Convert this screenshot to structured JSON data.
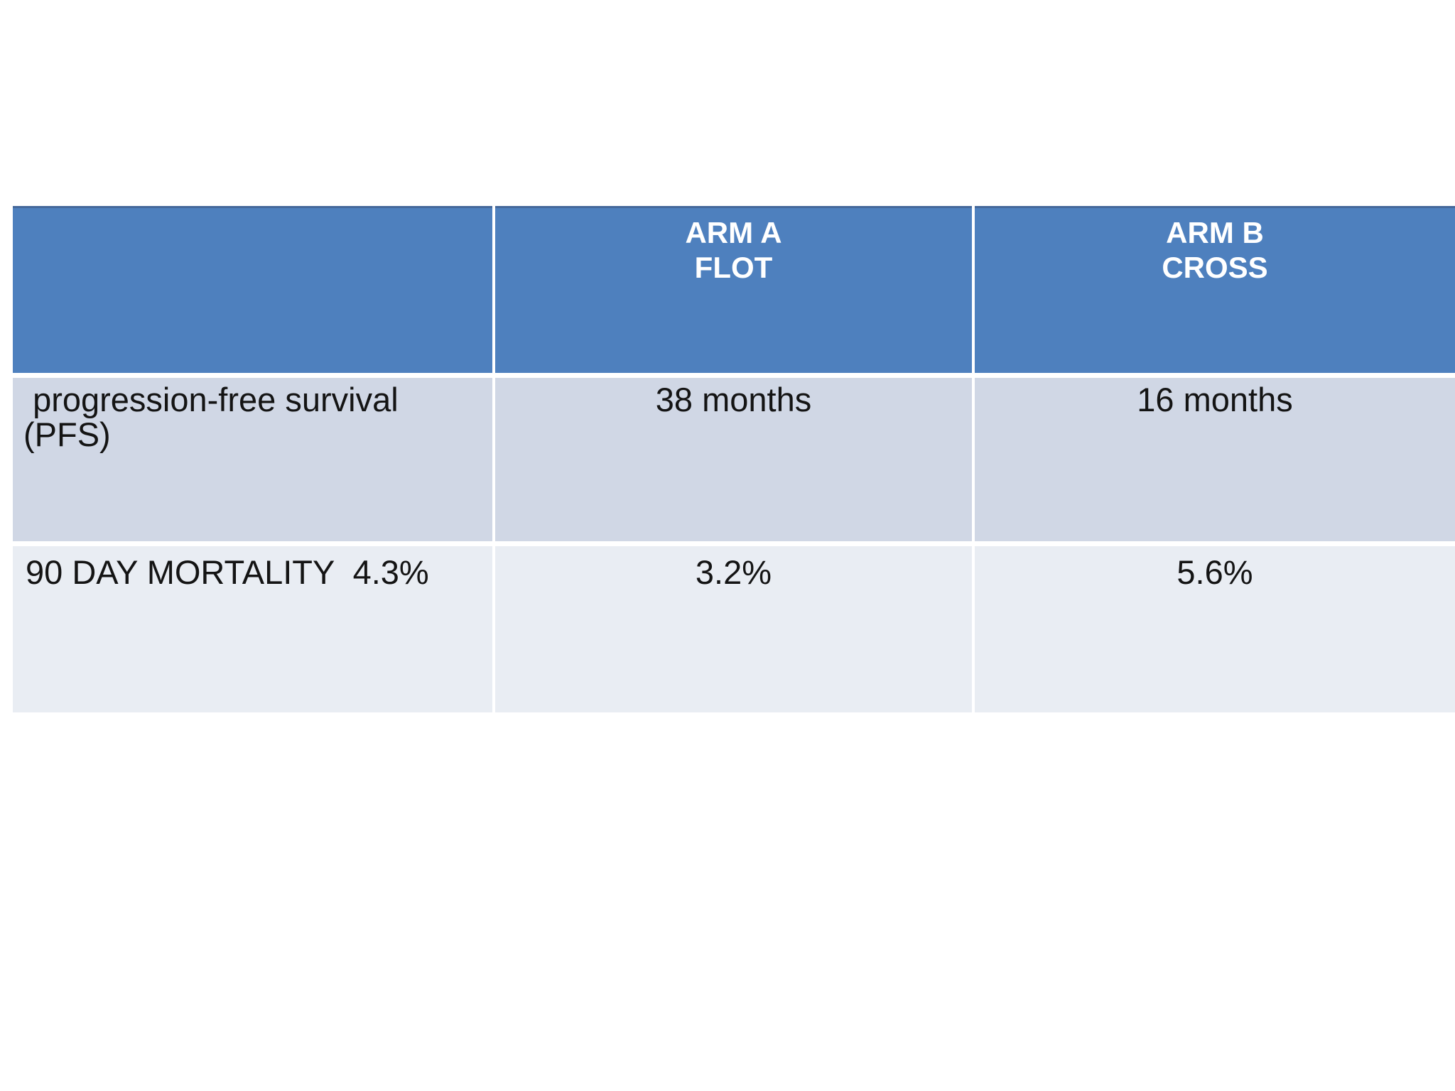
{
  "slide": {
    "background_color": "#FFFFFF",
    "table": {
      "colors": {
        "header_bg": "#4E80BE",
        "header_top_border": "#45689B",
        "header_text": "#FFFFFF",
        "band_row_bg": "#D0D7E5",
        "alt_row_bg": "#E9EDF3",
        "body_text": "#141414",
        "grid_gap": "#FFFFFF"
      },
      "header": {
        "blank": "",
        "arm_a": "ARM A\nFLOT",
        "arm_b": "ARM B\nCROSS"
      },
      "rows": [
        {
          "label": " progression-free survival\n(PFS)",
          "arm_a": "38 months",
          "arm_b": "16 months"
        },
        {
          "label": "90 DAY MORTALITY  4.3%",
          "arm_a": "3.2%",
          "arm_b": "5.6%"
        }
      ]
    }
  }
}
